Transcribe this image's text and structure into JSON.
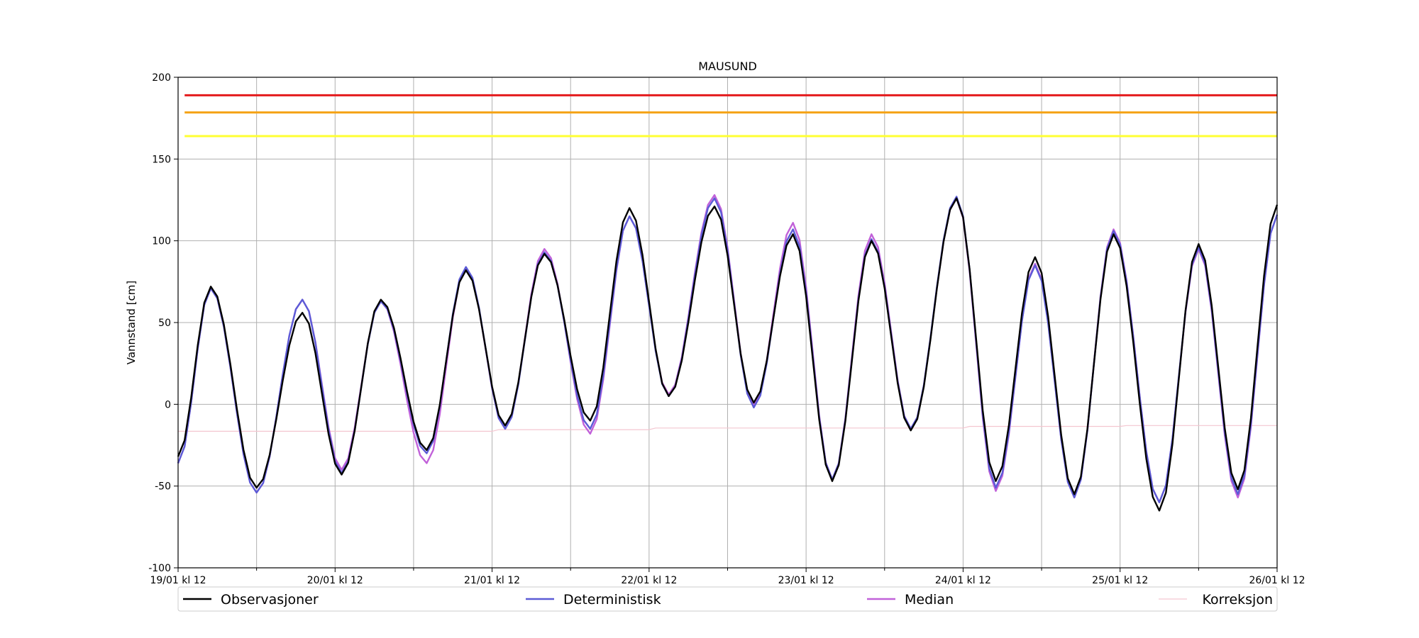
{
  "chart_data": {
    "type": "line",
    "title": "MAUSUND",
    "xlabel": "",
    "ylabel": "Vannstand [cm]",
    "xlim": [
      0,
      168
    ],
    "ylim": [
      -100,
      200
    ],
    "yticks": [
      -100,
      -50,
      0,
      50,
      100,
      150,
      200
    ],
    "xticks": [
      {
        "x": 0,
        "label": "19/01 kl 12"
      },
      {
        "x": 24,
        "label": "20/01 kl 12"
      },
      {
        "x": 48,
        "label": "21/01 kl 12"
      },
      {
        "x": 72,
        "label": "22/01 kl 12"
      },
      {
        "x": 96,
        "label": "23/01 kl 12"
      },
      {
        "x": 120,
        "label": "24/01 kl 12"
      },
      {
        "x": 144,
        "label": "25/01 kl 12"
      },
      {
        "x": 168,
        "label": "26/01 kl 12"
      }
    ],
    "minor_xticks": [
      12,
      36,
      60,
      84,
      108,
      132,
      156
    ],
    "grid": true,
    "legend_position": "bottom",
    "thresholds": [
      {
        "value": 189,
        "color": "#e41a1c"
      },
      {
        "value": 178.5,
        "color": "#f5a316"
      },
      {
        "value": 164,
        "color": "#ffff33"
      }
    ],
    "series": [
      {
        "name": "Observasjoner",
        "color": "#000000",
        "peaks": [
          [
            0,
            -32
          ],
          [
            5,
            72
          ],
          [
            12,
            -51
          ],
          [
            19,
            56
          ],
          [
            25,
            -43
          ],
          [
            31,
            64
          ],
          [
            38,
            -28
          ],
          [
            44,
            82
          ],
          [
            50,
            -13
          ],
          [
            56,
            92
          ],
          [
            63,
            -10
          ],
          [
            69,
            120
          ],
          [
            75,
            5
          ],
          [
            82,
            121
          ],
          [
            88,
            1
          ],
          [
            94,
            104
          ],
          [
            100,
            -47
          ],
          [
            106,
            100
          ],
          [
            112,
            -16
          ],
          [
            119,
            126
          ],
          [
            125,
            -47
          ],
          [
            131,
            90
          ],
          [
            137,
            -55
          ],
          [
            143,
            104
          ],
          [
            150,
            -65
          ],
          [
            156,
            98
          ],
          [
            162,
            -52
          ],
          [
            168,
            122
          ]
        ]
      },
      {
        "name": "Deterministisk",
        "color": "#5b5bd6",
        "peaks": [
          [
            0,
            -36
          ],
          [
            5,
            71
          ],
          [
            12,
            -54
          ],
          [
            19,
            64
          ],
          [
            25,
            -42
          ],
          [
            31,
            63
          ],
          [
            38,
            -30
          ],
          [
            44,
            84
          ],
          [
            50,
            -15
          ],
          [
            56,
            93
          ],
          [
            63,
            -15
          ],
          [
            69,
            115
          ],
          [
            75,
            5
          ],
          [
            82,
            126
          ],
          [
            88,
            -2
          ],
          [
            94,
            107
          ],
          [
            100,
            -46
          ],
          [
            106,
            101
          ],
          [
            112,
            -15
          ],
          [
            119,
            127
          ],
          [
            125,
            -51
          ],
          [
            131,
            85
          ],
          [
            137,
            -57
          ],
          [
            143,
            106
          ],
          [
            150,
            -60
          ],
          [
            156,
            96
          ],
          [
            162,
            -55
          ],
          [
            168,
            116
          ]
        ]
      },
      {
        "name": "Median",
        "color": "#c161d9",
        "peaks": [
          [
            0,
            -36
          ],
          [
            5,
            71
          ],
          [
            12,
            -54
          ],
          [
            19,
            64
          ],
          [
            25,
            -40
          ],
          [
            31,
            63
          ],
          [
            38,
            -36
          ],
          [
            44,
            83
          ],
          [
            50,
            -15
          ],
          [
            56,
            95
          ],
          [
            63,
            -18
          ],
          [
            69,
            115
          ],
          [
            75,
            6
          ],
          [
            82,
            128
          ],
          [
            88,
            -1
          ],
          [
            94,
            111
          ],
          [
            100,
            -46
          ],
          [
            106,
            104
          ],
          [
            112,
            -15
          ],
          [
            119,
            126
          ],
          [
            125,
            -53
          ],
          [
            131,
            86
          ],
          [
            137,
            -57
          ],
          [
            143,
            107
          ],
          [
            150,
            -60
          ],
          [
            156,
            95
          ],
          [
            162,
            -57
          ],
          [
            168,
            116
          ]
        ]
      },
      {
        "name": "Korreksjon",
        "color": "#f4c6d0",
        "points": [
          [
            0,
            -16.5
          ],
          [
            48,
            -16.5
          ],
          [
            49,
            -15.5
          ],
          [
            72,
            -15.5
          ],
          [
            73,
            -14.5
          ],
          [
            120,
            -14.5
          ],
          [
            121,
            -13.5
          ],
          [
            144,
            -13.5
          ],
          [
            145,
            -13
          ],
          [
            168,
            -13
          ]
        ]
      }
    ]
  }
}
